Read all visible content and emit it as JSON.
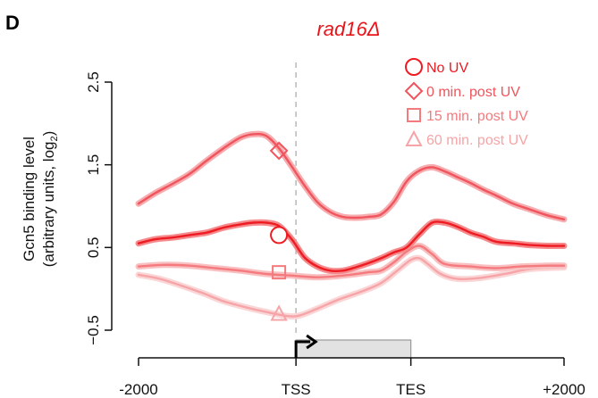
{
  "panel_label": "D",
  "chart_data": {
    "type": "line",
    "title": "rad16Δ",
    "ylabel_line1": "Gcn5 binding level",
    "ylabel_line2_prefix": "(arbitrary units, log",
    "ylabel_line2_sub": "2",
    "ylabel_line2_suffix": ")",
    "xlabel": "",
    "ylim": [
      -0.5,
      2.5
    ],
    "yticks": [
      -0.5,
      0.5,
      1.5,
      2.5
    ],
    "ytick_labels": [
      "−0.5",
      "0.5",
      "1.5",
      "2.5"
    ],
    "xlim": [
      0,
      100
    ],
    "xticks": [
      0,
      37,
      64,
      100
    ],
    "xtick_labels": [
      "-2000",
      "TSS",
      "TES",
      "+2000"
    ],
    "grid": false,
    "legend_position": "top-right",
    "gene_body": {
      "start": 37,
      "end": 64
    },
    "tss_x": 37,
    "colors": {
      "title": "#e8141a",
      "axis": "#111111",
      "tss_line": "#b8b8b8",
      "gene_fill": "#e2e2e2",
      "gene_stroke": "#9a9a9a",
      "arrow": "#000000"
    },
    "series": [
      {
        "name": "No UV",
        "marker": "circle",
        "marker_x": 33,
        "marker_y": 0.65,
        "color": "#ee1b22",
        "band": "#f48a8c",
        "x": [
          0,
          4,
          8,
          12,
          16,
          20,
          24,
          27,
          30,
          33,
          36,
          39,
          42,
          45,
          48,
          51,
          54,
          57,
          60,
          63,
          66,
          69,
          72,
          75,
          78,
          81,
          84,
          88,
          92,
          96,
          100
        ],
        "y": [
          0.55,
          0.6,
          0.62,
          0.65,
          0.68,
          0.74,
          0.78,
          0.8,
          0.8,
          0.76,
          0.6,
          0.38,
          0.27,
          0.22,
          0.22,
          0.26,
          0.31,
          0.37,
          0.44,
          0.5,
          0.66,
          0.8,
          0.8,
          0.75,
          0.68,
          0.63,
          0.57,
          0.55,
          0.53,
          0.52,
          0.52
        ]
      },
      {
        "name": "0 min. post UV",
        "marker": "diamond",
        "marker_x": 33,
        "marker_y": 1.67,
        "color": "#f0545c",
        "band": "#f7adb0",
        "x": [
          0,
          4,
          8,
          12,
          16,
          20,
          24,
          27,
          30,
          33,
          36,
          39,
          42,
          45,
          48,
          51,
          54,
          57,
          60,
          63,
          66,
          69,
          72,
          75,
          78,
          81,
          84,
          88,
          92,
          96,
          100
        ],
        "y": [
          1.03,
          1.16,
          1.27,
          1.39,
          1.55,
          1.7,
          1.83,
          1.87,
          1.85,
          1.7,
          1.48,
          1.25,
          1.05,
          0.93,
          0.87,
          0.86,
          0.87,
          0.9,
          1.05,
          1.3,
          1.43,
          1.47,
          1.42,
          1.35,
          1.28,
          1.2,
          1.13,
          1.03,
          0.96,
          0.89,
          0.84
        ]
      },
      {
        "name": "15 min. post UV",
        "marker": "square",
        "marker_x": 33,
        "marker_y": 0.2,
        "color": "#f47a7e",
        "band": "#f9c0c2",
        "x": [
          0,
          6,
          12,
          18,
          24,
          30,
          36,
          42,
          48,
          54,
          57,
          60,
          63,
          66,
          69,
          72,
          78,
          84,
          90,
          96,
          100
        ],
        "y": [
          0.27,
          0.29,
          0.28,
          0.25,
          0.22,
          0.18,
          0.16,
          0.14,
          0.16,
          0.2,
          0.22,
          0.32,
          0.45,
          0.52,
          0.42,
          0.3,
          0.27,
          0.25,
          0.27,
          0.28,
          0.28
        ]
      },
      {
        "name": "60 min. post UV",
        "marker": "triangle",
        "marker_x": 33,
        "marker_y": -0.3,
        "color": "#f6a4a7",
        "band": "#fbd6d7",
        "x": [
          0,
          5,
          10,
          15,
          20,
          25,
          30,
          35,
          38,
          42,
          47,
          52,
          57,
          61,
          64,
          66,
          68,
          71,
          75,
          80,
          86,
          92,
          100
        ],
        "y": [
          0.17,
          0.12,
          0.04,
          -0.05,
          -0.15,
          -0.22,
          -0.28,
          -0.33,
          -0.32,
          -0.24,
          -0.13,
          -0.04,
          0.07,
          0.23,
          0.35,
          0.37,
          0.3,
          0.18,
          0.12,
          0.13,
          0.18,
          0.24,
          0.26
        ]
      }
    ]
  }
}
